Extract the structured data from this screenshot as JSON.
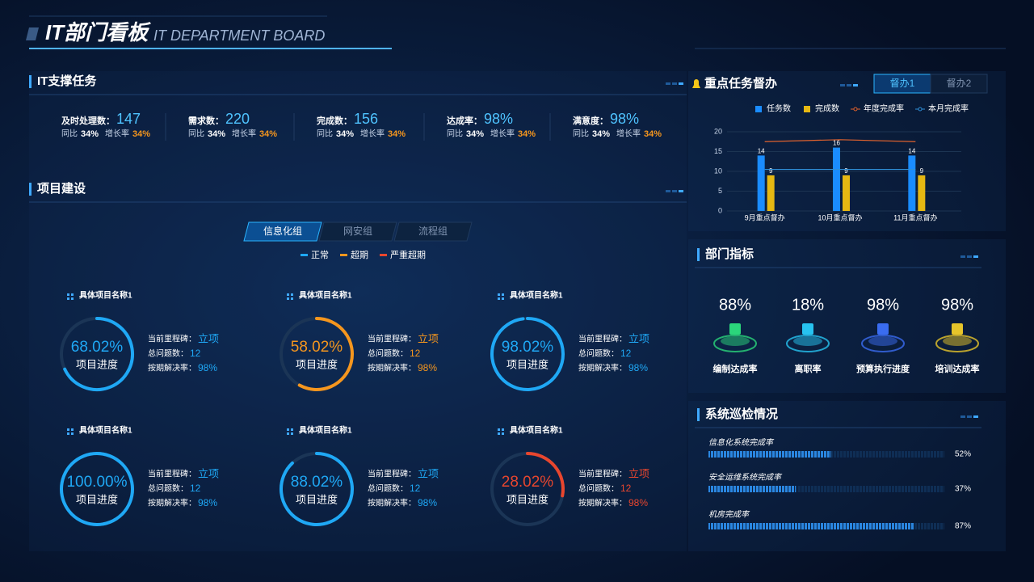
{
  "header": {
    "title": "IT部门看板",
    "subtitle": "IT DEPARTMENT BOARD"
  },
  "support": {
    "title": "IT支撑任务",
    "items": [
      {
        "label": "及时处理数：",
        "value": "147",
        "yoy_label": "同比",
        "yoy": "34%",
        "growth_label": "增长率",
        "growth": "34%"
      },
      {
        "label": "需求数：",
        "value": "220",
        "yoy_label": "同比",
        "yoy": "34%",
        "growth_label": "增长率",
        "growth": "34%"
      },
      {
        "label": "完成数：",
        "value": "156",
        "yoy_label": "同比",
        "yoy": "34%",
        "growth_label": "增长率",
        "growth": "34%"
      },
      {
        "label": "达成率：",
        "value": "98%",
        "yoy_label": "同比",
        "yoy": "34%",
        "growth_label": "增长率",
        "growth": "34%"
      },
      {
        "label": "满意度：",
        "value": "98%",
        "yoy_label": "同比",
        "yoy": "34%",
        "growth_label": "增长率",
        "growth": "34%"
      }
    ]
  },
  "projects": {
    "title": "项目建设",
    "tabs": [
      "信息化组",
      "网安组",
      "流程组"
    ],
    "active_tab": 0,
    "legend": [
      {
        "name": "正常",
        "color": "#1fa8f5"
      },
      {
        "name": "超期",
        "color": "#f5961e"
      },
      {
        "name": "严重超期",
        "color": "#e8462e"
      }
    ],
    "items": [
      {
        "name": "具体项目名称1",
        "progress": 68.02,
        "progress_label": "68.02%",
        "caption": "项目进度",
        "milestone_label": "当前里程碑：",
        "milestone": "立项",
        "issues_label": "总问题数：",
        "issues": "12",
        "rate_label": "按期解决率：",
        "rate": "98%",
        "color": "#1fa8f5"
      },
      {
        "name": "具体项目名称1",
        "progress": 58.02,
        "progress_label": "58.02%",
        "caption": "项目进度",
        "milestone_label": "当前里程碑：",
        "milestone": "立项",
        "issues_label": "总问题数：",
        "issues": "12",
        "rate_label": "按期解决率：",
        "rate": "98%",
        "color": "#f5961e"
      },
      {
        "name": "具体项目名称1",
        "progress": 98.02,
        "progress_label": "98.02%",
        "caption": "项目进度",
        "milestone_label": "当前里程碑：",
        "milestone": "立项",
        "issues_label": "总问题数：",
        "issues": "12",
        "rate_label": "按期解决率：",
        "rate": "98%",
        "color": "#1fa8f5"
      },
      {
        "name": "具体项目名称1",
        "progress": 100.0,
        "progress_label": "100.00%",
        "caption": "项目进度",
        "milestone_label": "当前里程碑：",
        "milestone": "立项",
        "issues_label": "总问题数：",
        "issues": "12",
        "rate_label": "按期解决率：",
        "rate": "98%",
        "color": "#1fa8f5"
      },
      {
        "name": "具体项目名称1",
        "progress": 88.02,
        "progress_label": "88.02%",
        "caption": "项目进度",
        "milestone_label": "当前里程碑：",
        "milestone": "立项",
        "issues_label": "总问题数：",
        "issues": "12",
        "rate_label": "按期解决率：",
        "rate": "98%",
        "color": "#1fa8f5"
      },
      {
        "name": "具体项目名称1",
        "progress": 28.02,
        "progress_label": "28.02%",
        "caption": "项目进度",
        "milestone_label": "当前里程碑：",
        "milestone": "立项",
        "issues_label": "总问题数：",
        "issues": "12",
        "rate_label": "按期解决率：",
        "rate": "98%",
        "color": "#e8462e"
      }
    ]
  },
  "key_tasks": {
    "title": "重点任务督办",
    "tabs": [
      "督办1",
      "督办2"
    ],
    "active_tab": 0
  },
  "chart_data": {
    "type": "bar",
    "categories": [
      "9月重点督办",
      "10月重点督办",
      "11月重点督办"
    ],
    "series": [
      {
        "name": "任务数",
        "type": "bar",
        "color": "#1a8cff",
        "values": [
          14,
          16,
          14
        ]
      },
      {
        "name": "完成数",
        "type": "bar",
        "color": "#e6b812",
        "values": [
          9,
          9,
          9
        ]
      },
      {
        "name": "年度完成率",
        "type": "line",
        "color": "#e0622e",
        "values": [
          17.5,
          18,
          17.5
        ]
      },
      {
        "name": "本月完成率",
        "type": "line",
        "color": "#2f8fd8",
        "values": [
          10.5,
          10.5,
          10.5
        ]
      }
    ],
    "ylim": [
      0,
      20
    ],
    "yticks": [
      0,
      5,
      10,
      15,
      20
    ],
    "grid": true
  },
  "dept_metrics": {
    "title": "部门指标",
    "items": [
      {
        "value": "88%",
        "label": "编制达成率",
        "color": "#2bd67b"
      },
      {
        "value": "18%",
        "label": "离职率",
        "color": "#27c3f0"
      },
      {
        "value": "98%",
        "label": "预算执行进度",
        "color": "#3a6cf0"
      },
      {
        "value": "98%",
        "label": "培训达成率",
        "color": "#e6c42a"
      }
    ]
  },
  "inspection": {
    "title": "系统巡检情况",
    "items": [
      {
        "name": "信息化系统完成率",
        "percent": 52,
        "percent_label": "52%"
      },
      {
        "name": "安全运维系统完成率",
        "percent": 37,
        "percent_label": "37%"
      },
      {
        "name": "机房完成率",
        "percent": 87,
        "percent_label": "87%"
      }
    ]
  }
}
